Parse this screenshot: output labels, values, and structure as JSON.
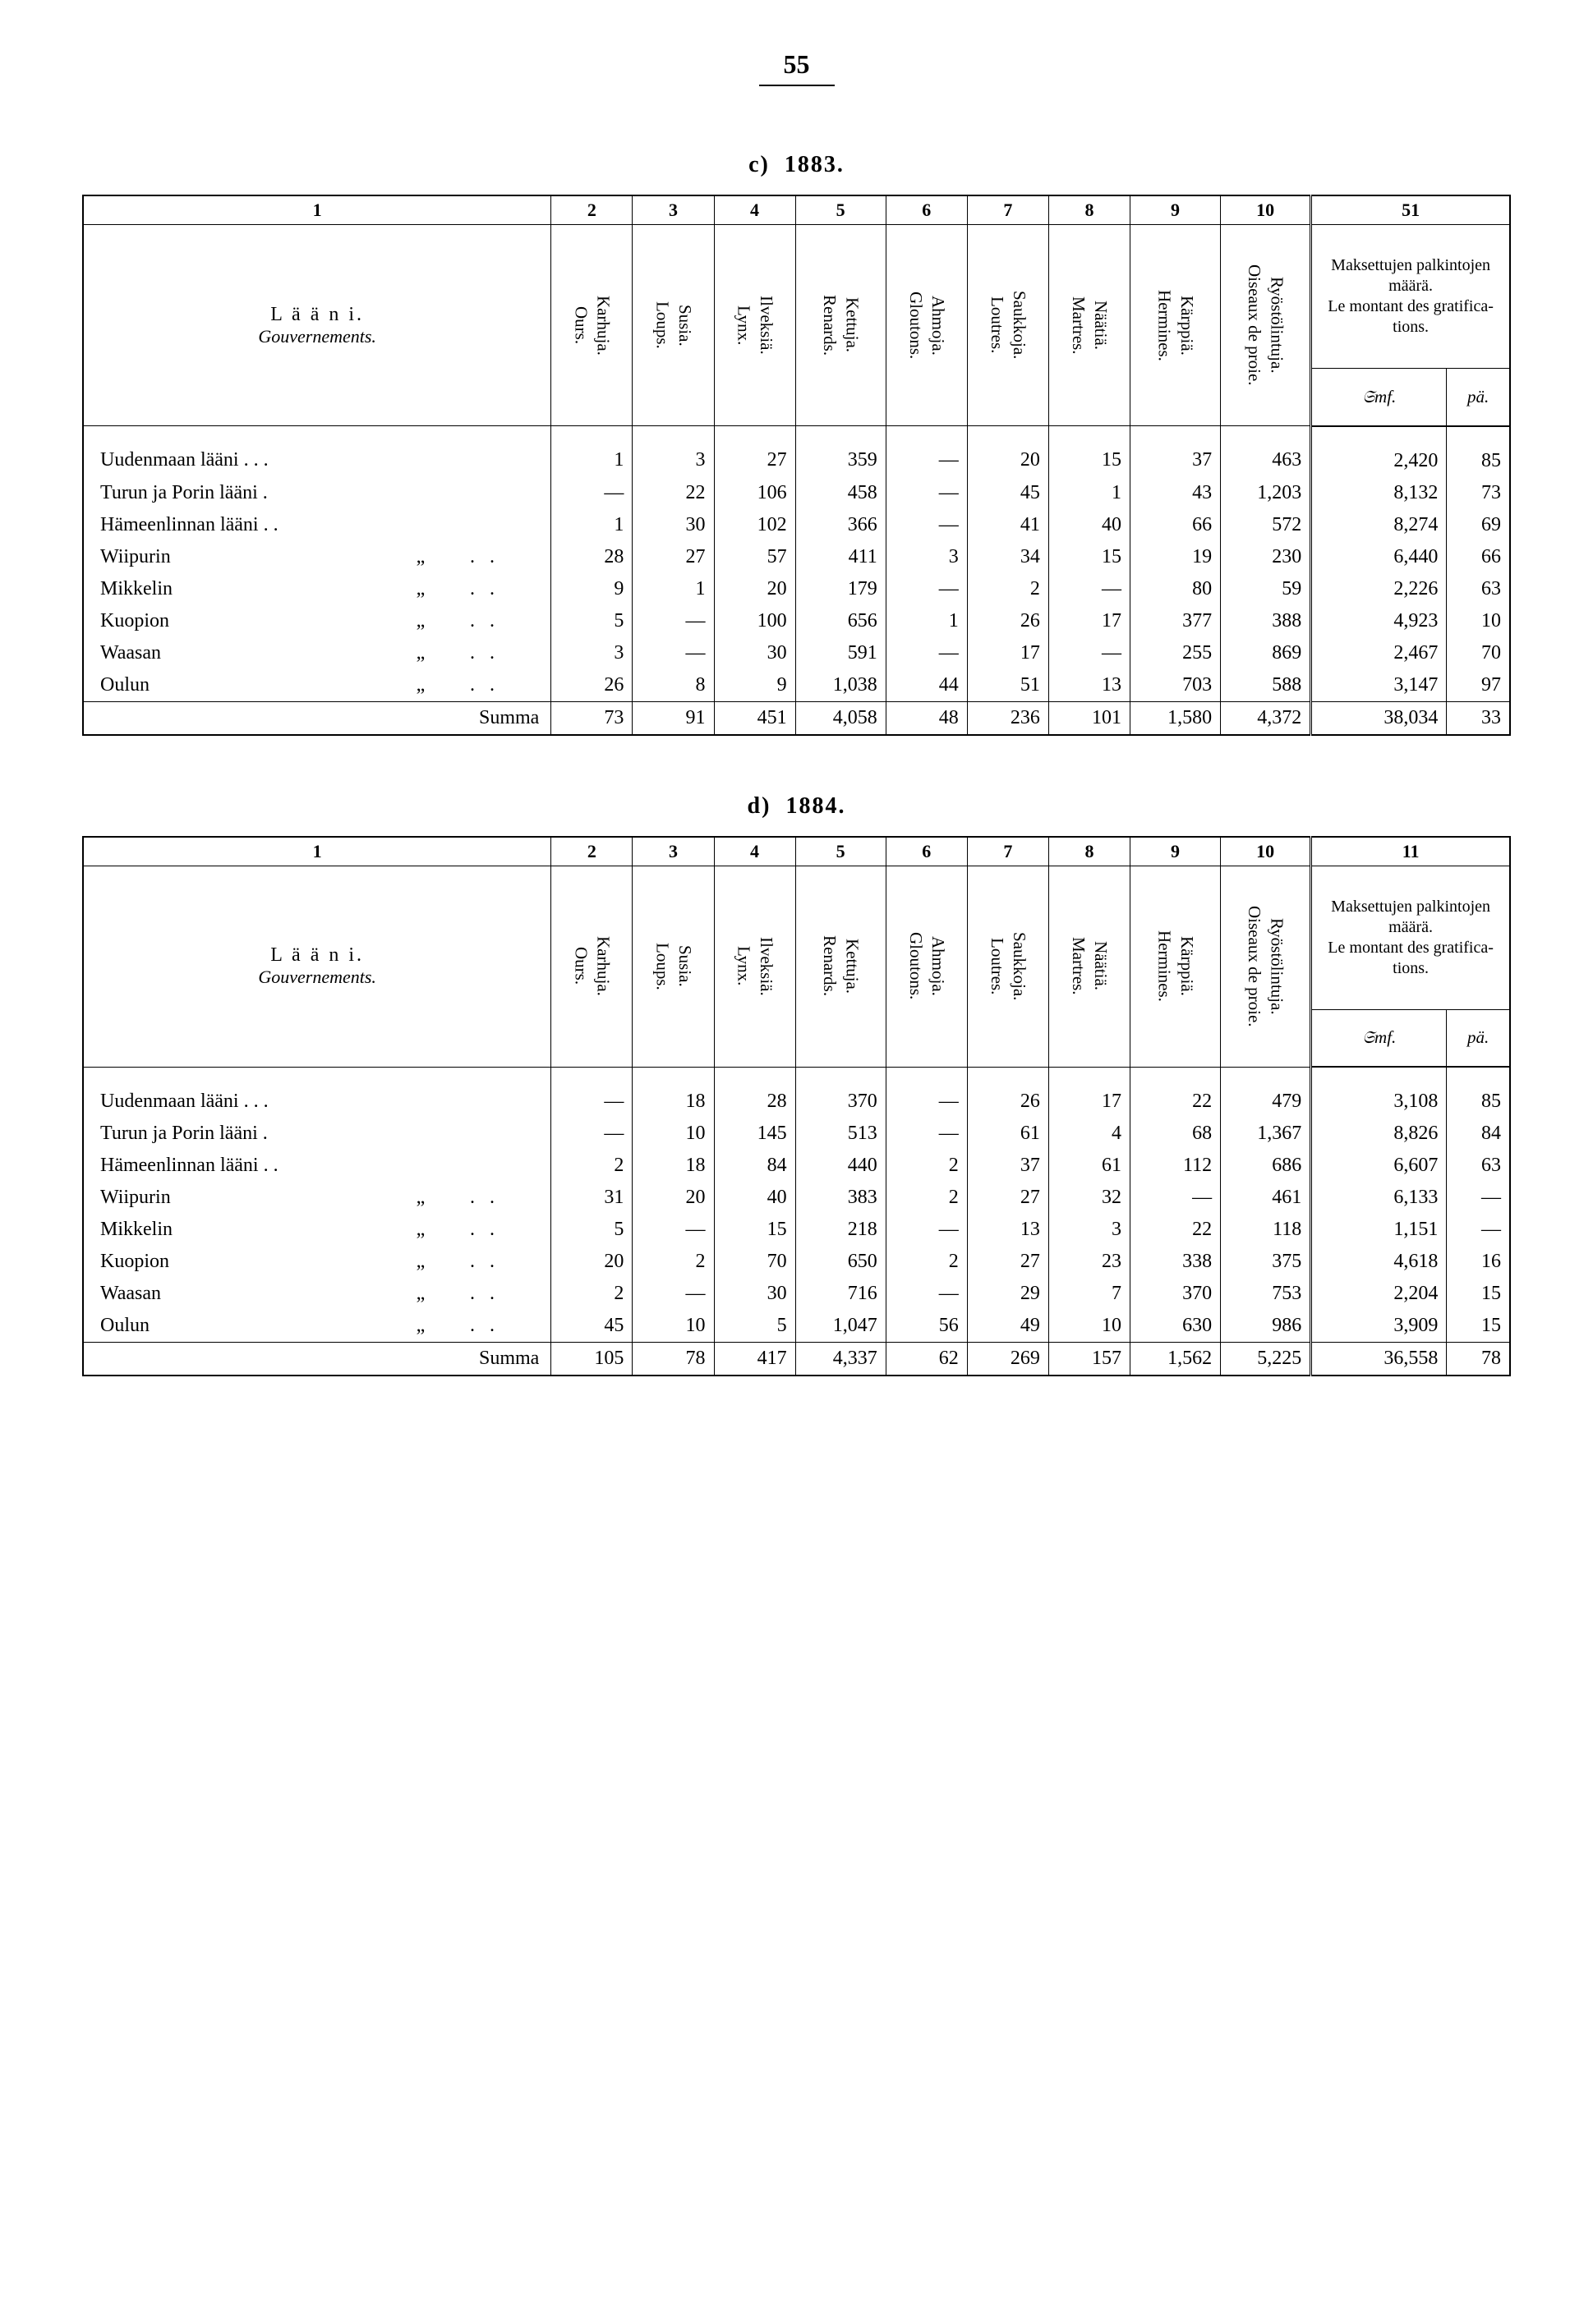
{
  "page_number": "55",
  "columns": {
    "nums_a": [
      "1",
      "2",
      "3",
      "4",
      "5",
      "6",
      "7",
      "8",
      "9",
      "10",
      "51"
    ],
    "nums_b": [
      "1",
      "2",
      "3",
      "4",
      "5",
      "6",
      "7",
      "8",
      "9",
      "10",
      "11"
    ],
    "laani_fi": "L ä ä n i.",
    "laani_fr": "Gouvernements.",
    "c2_fi": "Karhuja.",
    "c2_fr": "Ours.",
    "c3_fi": "Susia.",
    "c3_fr": "Loups.",
    "c4_fi": "Ilveksiä.",
    "c4_fr": "Lynx.",
    "c5_fi": "Kettuja.",
    "c5_fr": "Renards.",
    "c6_fi": "Ahmoja.",
    "c6_fr": "Gloutons.",
    "c7_fi": "Saukkoja.",
    "c7_fr": "Loutres.",
    "c8_fi": "Näätiä.",
    "c8_fr": "Martres.",
    "c9_fi": "Kärppiä.",
    "c9_fr": "Hermines.",
    "c10_fi": "Ryöstölintuja.",
    "c10_fr": "Oiseaux de proie.",
    "c11a": "Maksettujen palkintojen määrä.",
    "c11b": "Le montant des gratifica­tions.",
    "unit_mk": "𝔖mf.",
    "unit_p": "pä."
  },
  "table_c": {
    "label_prefix": "c)",
    "label_year": "1883.",
    "rows": [
      {
        "name": "Uudenmaan lääni .   .   .",
        "v": [
          "1",
          "3",
          "27",
          "359",
          "—",
          "20",
          "15",
          "37",
          "463",
          "2,420",
          "85"
        ]
      },
      {
        "name": "Turun ja Porin lääni   .",
        "v": [
          "—",
          "22",
          "106",
          "458",
          "—",
          "45",
          "1",
          "43",
          "1,203",
          "8,132",
          "73"
        ]
      },
      {
        "name": "Hämeenlinnan lääni .   .",
        "v": [
          "1",
          "30",
          "102",
          "366",
          "—",
          "41",
          "40",
          "66",
          "572",
          "8,274",
          "69"
        ]
      },
      {
        "name": "Wiipurin",
        "ditto": true,
        "v": [
          "28",
          "27",
          "57",
          "411",
          "3",
          "34",
          "15",
          "19",
          "230",
          "6,440",
          "66"
        ]
      },
      {
        "name": "Mikkelin",
        "ditto": true,
        "v": [
          "9",
          "1",
          "20",
          "179",
          "—",
          "2",
          "—",
          "80",
          "59",
          "2,226",
          "63"
        ]
      },
      {
        "name": "Kuopion",
        "ditto": true,
        "v": [
          "5",
          "—",
          "100",
          "656",
          "1",
          "26",
          "17",
          "377",
          "388",
          "4,923",
          "10"
        ]
      },
      {
        "name": "Waasan",
        "ditto": true,
        "v": [
          "3",
          "—",
          "30",
          "591",
          "—",
          "17",
          "—",
          "255",
          "869",
          "2,467",
          "70"
        ]
      },
      {
        "name": "Oulun",
        "ditto": true,
        "v": [
          "26",
          "8",
          "9",
          "1,038",
          "44",
          "51",
          "13",
          "703",
          "588",
          "3,147",
          "97"
        ]
      }
    ],
    "sum_label": "Summa",
    "sum": [
      "73",
      "91",
      "451",
      "4,058",
      "48",
      "236",
      "101",
      "1,580",
      "4,372",
      "38,034",
      "33"
    ]
  },
  "table_d": {
    "label_prefix": "d)",
    "label_year": "1884.",
    "rows": [
      {
        "name": "Uudenmaan lääni .   .   .",
        "v": [
          "—",
          "18",
          "28",
          "370",
          "—",
          "26",
          "17",
          "22",
          "479",
          "3,108",
          "85"
        ]
      },
      {
        "name": "Turun ja Porin lääni   .",
        "v": [
          "—",
          "10",
          "145",
          "513",
          "—",
          "61",
          "4",
          "68",
          "1,367",
          "8,826",
          "84"
        ]
      },
      {
        "name": "Hämeenlinnan lääni .   .",
        "v": [
          "2",
          "18",
          "84",
          "440",
          "2",
          "37",
          "61",
          "112",
          "686",
          "6,607",
          "63"
        ]
      },
      {
        "name": "Wiipurin",
        "ditto": true,
        "v": [
          "31",
          "20",
          "40",
          "383",
          "2",
          "27",
          "32",
          "—",
          "461",
          "6,133",
          "—"
        ]
      },
      {
        "name": "Mikkelin",
        "ditto": true,
        "v": [
          "5",
          "—",
          "15",
          "218",
          "—",
          "13",
          "3",
          "22",
          "118",
          "1,151",
          "—"
        ]
      },
      {
        "name": "Kuopion",
        "ditto": true,
        "v": [
          "20",
          "2",
          "70",
          "650",
          "2",
          "27",
          "23",
          "338",
          "375",
          "4,618",
          "16"
        ]
      },
      {
        "name": "Waasan",
        "ditto": true,
        "v": [
          "2",
          "—",
          "30",
          "716",
          "—",
          "29",
          "7",
          "370",
          "753",
          "2,204",
          "15"
        ]
      },
      {
        "name": "Oulun",
        "ditto": true,
        "v": [
          "45",
          "10",
          "5",
          "1,047",
          "56",
          "49",
          "10",
          "630",
          "986",
          "3,909",
          "15"
        ]
      }
    ],
    "sum_label": "Summa",
    "sum": [
      "105",
      "78",
      "417",
      "4,337",
      "62",
      "269",
      "157",
      "1,562",
      "5,225",
      "36,558",
      "78"
    ]
  }
}
